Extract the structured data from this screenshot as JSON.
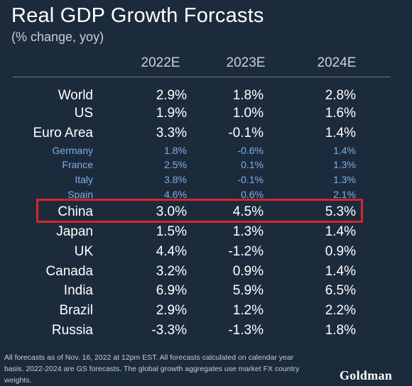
{
  "chart_data": {
    "type": "table",
    "title": "Real GDP Growth Forcasts",
    "subtitle": "(% change, yoy)",
    "columns": [
      "2022E",
      "2023E",
      "2024E"
    ],
    "highlighted_row": "China",
    "rows": [
      {
        "label": "World",
        "level": "main",
        "values": [
          "2.9%",
          "1.8%",
          "2.8%"
        ]
      },
      {
        "label": "US",
        "level": "main",
        "values": [
          "1.9%",
          "1.0%",
          "1.6%"
        ]
      },
      {
        "label": "Euro Area",
        "level": "main",
        "values": [
          "3.3%",
          "-0.1%",
          "1.4%"
        ]
      },
      {
        "label": "Germany",
        "level": "sub",
        "values": [
          "1.8%",
          "-0.6%",
          "1.4%"
        ]
      },
      {
        "label": "France",
        "level": "sub",
        "values": [
          "2.5%",
          "0.1%",
          "1.3%"
        ]
      },
      {
        "label": "Italy",
        "level": "sub",
        "values": [
          "3.8%",
          "-0.1%",
          "1.3%"
        ]
      },
      {
        "label": "Spain",
        "level": "sub",
        "values": [
          "4.6%",
          "0.6%",
          "2.1%"
        ]
      },
      {
        "label": "China",
        "level": "main",
        "values": [
          "3.0%",
          "4.5%",
          "5.3%"
        ]
      },
      {
        "label": "Japan",
        "level": "main",
        "values": [
          "1.5%",
          "1.3%",
          "1.4%"
        ]
      },
      {
        "label": "UK",
        "level": "main",
        "values": [
          "4.4%",
          "-1.2%",
          "0.9%"
        ]
      },
      {
        "label": "Canada",
        "level": "main",
        "values": [
          "3.2%",
          "0.9%",
          "1.4%"
        ]
      },
      {
        "label": "India",
        "level": "main",
        "values": [
          "6.9%",
          "5.9%",
          "6.5%"
        ]
      },
      {
        "label": "Brazil",
        "level": "main",
        "values": [
          "2.9%",
          "1.2%",
          "2.2%"
        ]
      },
      {
        "label": "Russia",
        "level": "main",
        "values": [
          "-3.3%",
          "-1.3%",
          "1.8%"
        ]
      }
    ]
  },
  "footnote": "All forecasts as of Nov. 16, 2022 at 12pm EST. All forecasts calculated on calendar year basis. 2022-2024 are GS forecasts. The global growth aggregates use market FX country weights.",
  "brand": "Goldman",
  "colors": {
    "background": "#1c2b3c",
    "subregion_text": "#7eaee6",
    "highlight_border": "#d8242e"
  }
}
